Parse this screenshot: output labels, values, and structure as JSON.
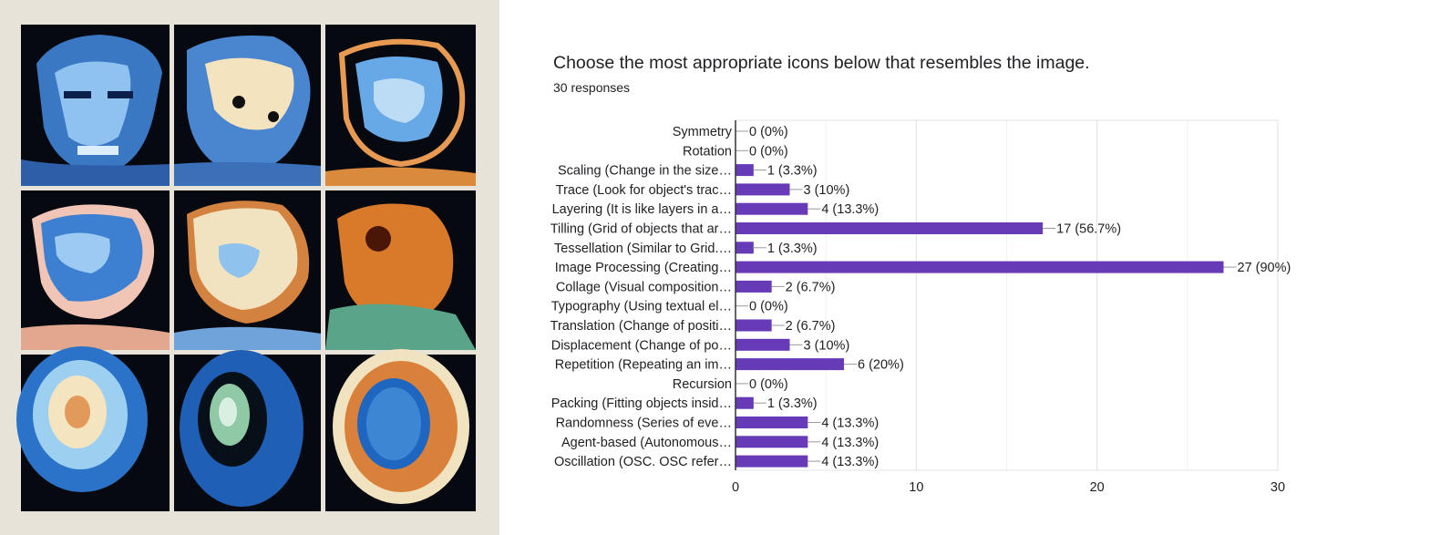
{
  "question": {
    "title": "Choose the most appropriate icons below that resembles the image.",
    "responses": "30 responses"
  },
  "colors": {
    "bar": "#673ab7",
    "grid": "#e6e6e6",
    "axis": "#333333",
    "text": "#202124"
  },
  "chart_data": {
    "type": "bar",
    "orientation": "horizontal",
    "categories": [
      "Symmetry",
      "Rotation",
      "Scaling (Change in the size…",
      "Trace (Look for object's trac…",
      "Layering (It is like layers in a…",
      "Tilling (Grid of objects that ar…",
      "Tessellation (Similar to Grid.…",
      "Image Processing (Creating…",
      "Collage (Visual composition…",
      "Typography (Using textual el…",
      "Translation (Change of positi…",
      "Displacement (Change of po…",
      "Repetition (Repeating an im…",
      "Recursion",
      "Packing (Fitting objects insid…",
      "Randomness (Series of eve…",
      "Agent-based (Autonomous…",
      "Oscillation (OSC. OSC refer…"
    ],
    "values": [
      0,
      0,
      1,
      3,
      4,
      17,
      1,
      27,
      2,
      0,
      2,
      3,
      6,
      0,
      1,
      4,
      4,
      4
    ],
    "data_labels": [
      "0 (0%)",
      "0 (0%)",
      "1 (3.3%)",
      "3 (10%)",
      "4 (13.3%)",
      "17 (56.7%)",
      "1 (3.3%)",
      "27 (90%)",
      "2 (6.7%)",
      "0 (0%)",
      "2 (6.7%)",
      "3 (10%)",
      "6 (20%)",
      "0 (0%)",
      "1 (3.3%)",
      "4 (13.3%)",
      "4 (13.3%)",
      "4 (13.3%)"
    ],
    "xlim": [
      0,
      30
    ],
    "xticks": [
      "0",
      "10",
      "20",
      "30"
    ],
    "grid": true
  }
}
